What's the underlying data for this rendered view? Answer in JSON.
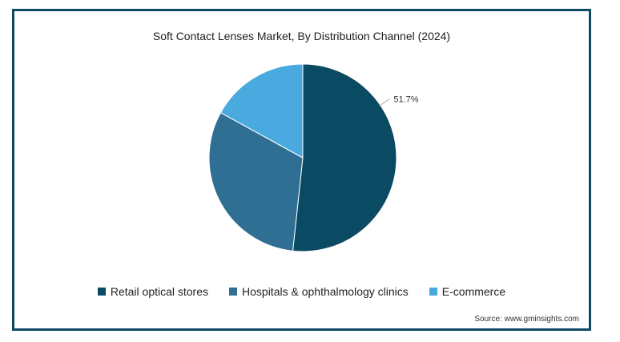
{
  "chart_data": {
    "type": "pie",
    "title": "Soft Contact Lenses Market, By Distribution Channel (2024)",
    "slices": [
      {
        "name": "Retail optical stores",
        "value": 51.7,
        "label": "51.7%",
        "color": "#0b4a63"
      },
      {
        "name": "Hospitals & ophthalmology clinics",
        "value": 31.3,
        "label": "",
        "color": "#2f6f93"
      },
      {
        "name": "E-commerce",
        "value": 17.0,
        "label": "",
        "color": "#4aa9df"
      }
    ],
    "legend_position": "bottom"
  },
  "source": "Source: www.gminsights.com",
  "colors": {
    "border": "#0d4a63"
  }
}
